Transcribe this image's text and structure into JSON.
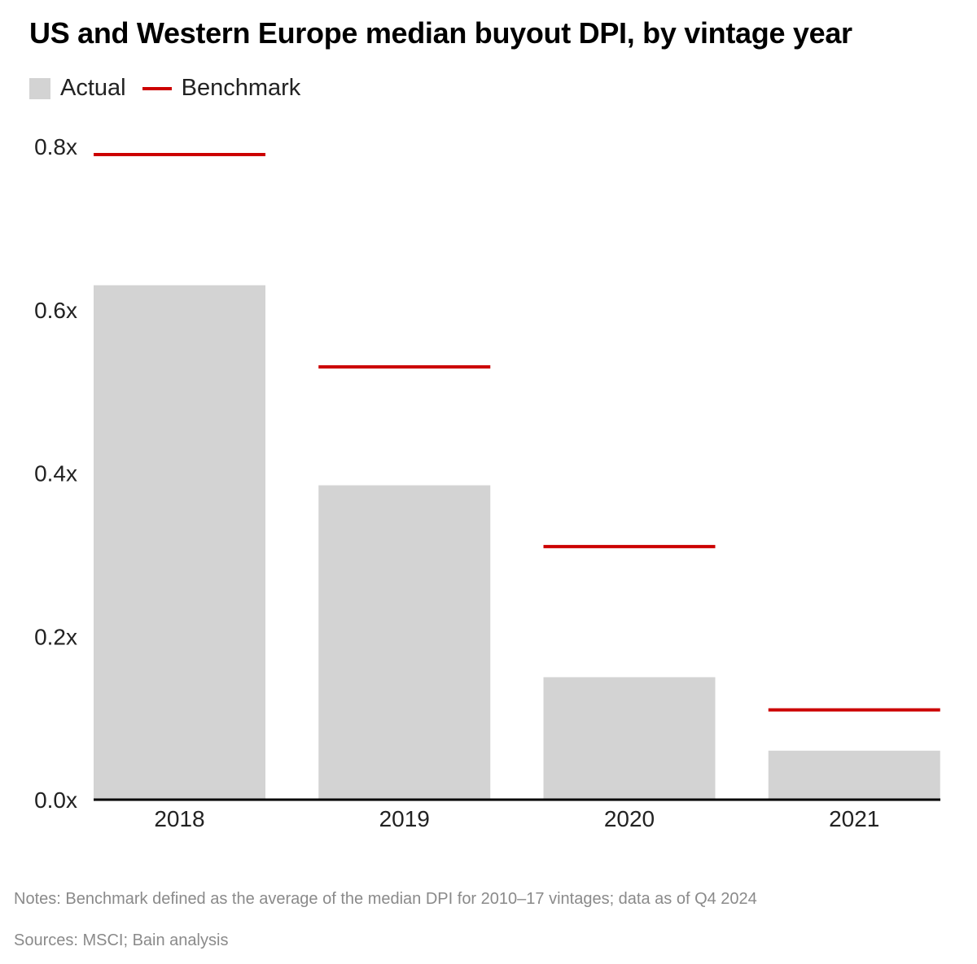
{
  "chart_data": {
    "type": "bar",
    "title": "US and Western Europe median buyout DPI, by vintage year",
    "categories": [
      "2018",
      "2019",
      "2020",
      "2021"
    ],
    "series": [
      {
        "name": "Actual",
        "type": "bar",
        "color": "#d3d3d3",
        "values": [
          0.63,
          0.385,
          0.15,
          0.06
        ]
      },
      {
        "name": "Benchmark",
        "type": "line-marker",
        "color": "#cc0000",
        "values": [
          0.79,
          0.53,
          0.31,
          0.11
        ]
      }
    ],
    "ylim": [
      0,
      0.8
    ],
    "yticks": [
      "0.0x",
      "0.2x",
      "0.4x",
      "0.6x",
      "0.8x"
    ],
    "ytick_values": [
      0,
      0.2,
      0.4,
      0.6,
      0.8
    ],
    "grid": false,
    "legend": "top-left"
  },
  "notes": "Notes: Benchmark defined as the average of the median DPI for 2010–17 vintages; data as of Q4 2024",
  "sources": "Sources: MSCI; Bain analysis"
}
